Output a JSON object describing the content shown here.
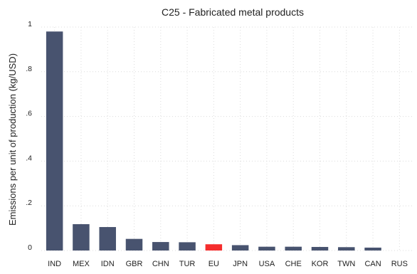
{
  "chart_data": {
    "type": "bar",
    "title": "C25 - Fabricated metal products",
    "xlabel": "",
    "ylabel": "Emissions per unit of production (kg/USD)",
    "ylim": [
      0,
      1
    ],
    "yticks": [
      0,
      0.2,
      0.4,
      0.6,
      0.8,
      1
    ],
    "ytick_labels": [
      "0",
      ".2",
      ".4",
      ".6",
      ".8",
      "1"
    ],
    "grid": true,
    "categories": [
      "IND",
      "MEX",
      "IDN",
      "GBR",
      "CHN",
      "TUR",
      "EU",
      "JPN",
      "USA",
      "CHE",
      "KOR",
      "TWN",
      "CAN",
      "RUS"
    ],
    "values": [
      0.98,
      0.118,
      0.105,
      0.052,
      0.038,
      0.037,
      0.028,
      0.024,
      0.017,
      0.017,
      0.016,
      0.015,
      0.013,
      0
    ],
    "colors": {
      "default": "#48536f",
      "highlight": "#f52d2d",
      "highlight_category": "EU"
    }
  }
}
